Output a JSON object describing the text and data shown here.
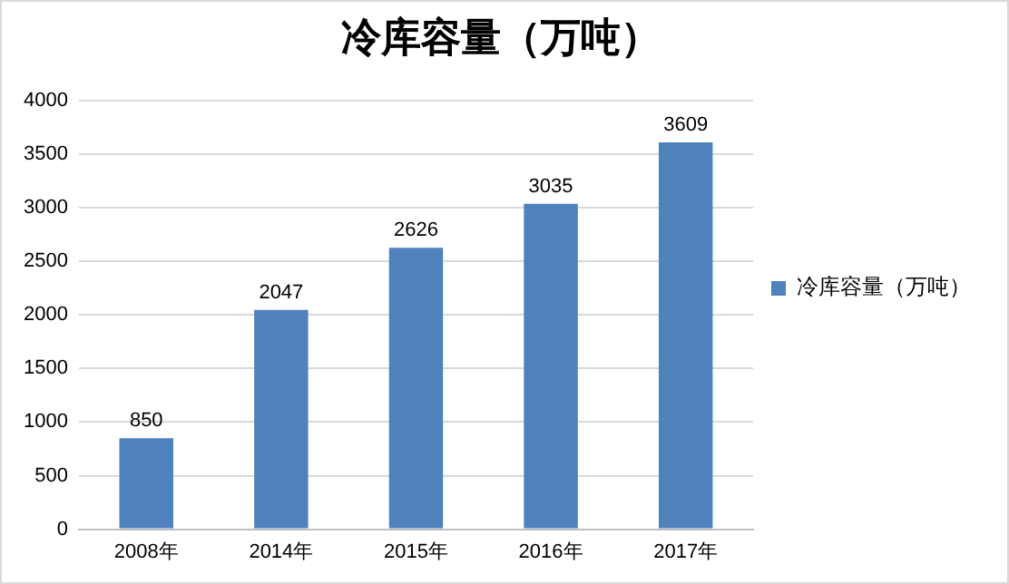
{
  "chart_data": {
    "type": "bar",
    "title": "冷库容量（万吨）",
    "categories": [
      "2008年",
      "2014年",
      "2015年",
      "2016年",
      "2017年"
    ],
    "series": [
      {
        "name": "冷库容量（万吨）",
        "color": "#4f81bd",
        "values": [
          850,
          2047,
          2626,
          3035,
          3609
        ]
      }
    ],
    "ylim": [
      0,
      4000
    ],
    "yticks": [
      0,
      500,
      1000,
      1500,
      2000,
      2500,
      3000,
      3500,
      4000
    ],
    "grid": "y",
    "legend": "right",
    "data_labels": true
  }
}
